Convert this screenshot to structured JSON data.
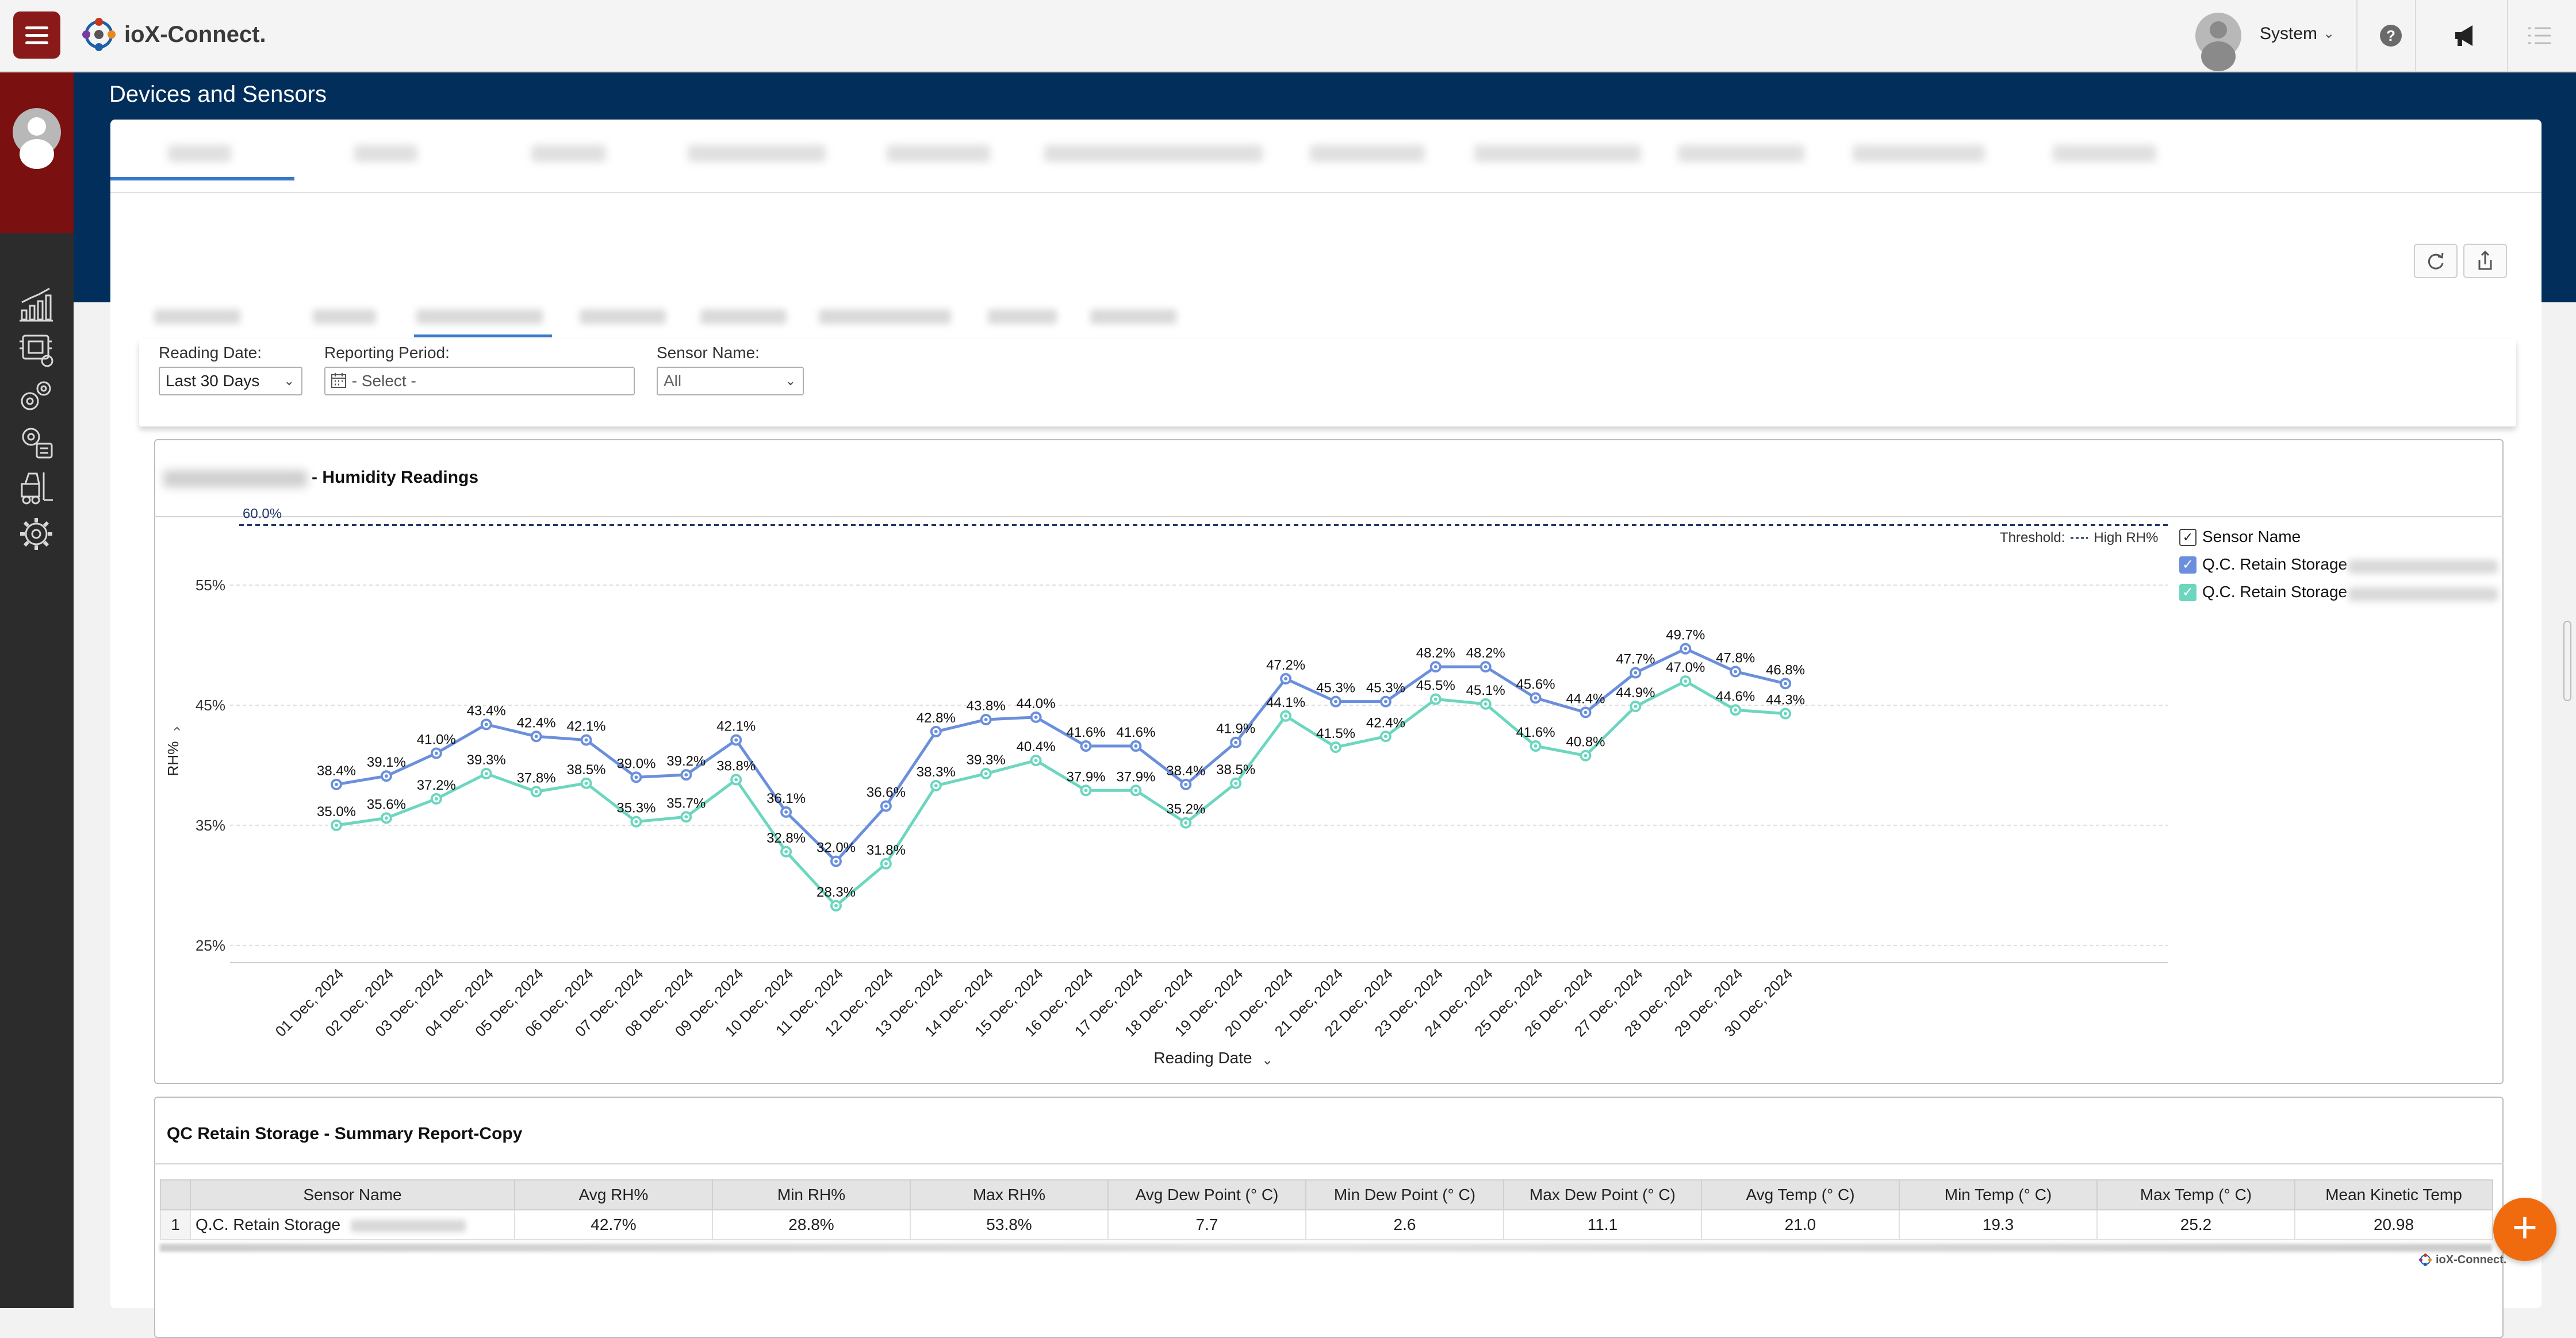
{
  "app": {
    "logo_text": "ioX-Connect.",
    "user_name": "System",
    "page_title": "Devices and Sensors"
  },
  "filters": {
    "reading_date_label": "Reading Date:",
    "reading_date_value": "Last 30 Days",
    "reporting_period_label": "Reporting Period:",
    "reporting_period_placeholder": "- Select -",
    "sensor_name_label": "Sensor Name:",
    "sensor_name_value": "All"
  },
  "chart_panel": {
    "title": "- Humidity Readings",
    "threshold_label": "Threshold:",
    "threshold_series": "High RH%",
    "legend_header": "Sensor Name",
    "legend_items": [
      "Q.C. Retain Storage",
      "Q.C. Retain Storage"
    ]
  },
  "chart_data": {
    "type": "line",
    "xlabel": "Reading Date",
    "ylabel": "RH%",
    "ylim": [
      23.7,
      60.6
    ],
    "yticks": [
      "25%",
      "35%",
      "45%",
      "55%"
    ],
    "ytick_values": [
      25,
      35,
      45,
      55
    ],
    "grid": true,
    "legend_position": "top-right",
    "threshold": {
      "label": "60.0%",
      "value": 60.0
    },
    "categories": [
      "01 Dec, 2024",
      "02 Dec, 2024",
      "03 Dec, 2024",
      "04 Dec, 2024",
      "05 Dec, 2024",
      "06 Dec, 2024",
      "07 Dec, 2024",
      "08 Dec, 2024",
      "09 Dec, 2024",
      "10 Dec, 2024",
      "11 Dec, 2024",
      "12 Dec, 2024",
      "13 Dec, 2024",
      "14 Dec, 2024",
      "15 Dec, 2024",
      "16 Dec, 2024",
      "17 Dec, 2024",
      "18 Dec, 2024",
      "19 Dec, 2024",
      "20 Dec, 2024",
      "21 Dec, 2024",
      "22 Dec, 2024",
      "23 Dec, 2024",
      "24 Dec, 2024",
      "25 Dec, 2024",
      "26 Dec, 2024",
      "27 Dec, 2024",
      "28 Dec, 2024",
      "29 Dec, 2024",
      "30 Dec, 2024"
    ],
    "series": [
      {
        "name": "Q.C. Retain Storage",
        "color": "#6b8fdc",
        "values": [
          38.4,
          39.1,
          41.0,
          43.4,
          42.4,
          42.1,
          39.0,
          39.2,
          42.1,
          36.1,
          32.0,
          36.6,
          42.8,
          43.8,
          44.0,
          41.6,
          41.6,
          38.4,
          41.9,
          47.2,
          45.3,
          45.3,
          48.2,
          48.2,
          45.6,
          44.4,
          47.7,
          49.7,
          47.8,
          46.8
        ]
      },
      {
        "name": "Q.C. Retain Storage",
        "color": "#6cd6bf",
        "values": [
          35.0,
          35.6,
          37.2,
          39.3,
          37.8,
          38.5,
          35.3,
          35.7,
          38.8,
          32.8,
          28.3,
          31.8,
          38.3,
          39.3,
          40.4,
          37.9,
          37.9,
          35.2,
          38.5,
          44.1,
          41.5,
          42.4,
          45.5,
          45.1,
          41.6,
          40.8,
          44.9,
          47.0,
          44.6,
          44.3
        ]
      }
    ]
  },
  "summary": {
    "title": "QC Retain Storage - Summary Report-Copy",
    "columns": [
      "Sensor Name",
      "Avg RH%",
      "Min RH%",
      "Max RH%",
      "Avg Dew Point (° C)",
      "Min Dew Point (° C)",
      "Max Dew Point (° C)",
      "Avg Temp (° C)",
      "Min Temp (° C)",
      "Max Temp (° C)",
      "Mean Kinetic Temp"
    ],
    "rows": [
      {
        "index": "1",
        "name": "Q.C. Retain Storage",
        "values": [
          "42.7%",
          "28.8%",
          "53.8%",
          "7.7",
          "2.6",
          "11.1",
          "21.0",
          "19.3",
          "25.2",
          "20.98"
        ]
      }
    ]
  },
  "footer": {
    "logo_text": "ioX-Connect."
  },
  "colors": {
    "brand_red": "#8a1a1a",
    "header_navy": "#022e5c",
    "accent_blue": "#3a78c8",
    "fab_orange": "#f06a0e"
  }
}
